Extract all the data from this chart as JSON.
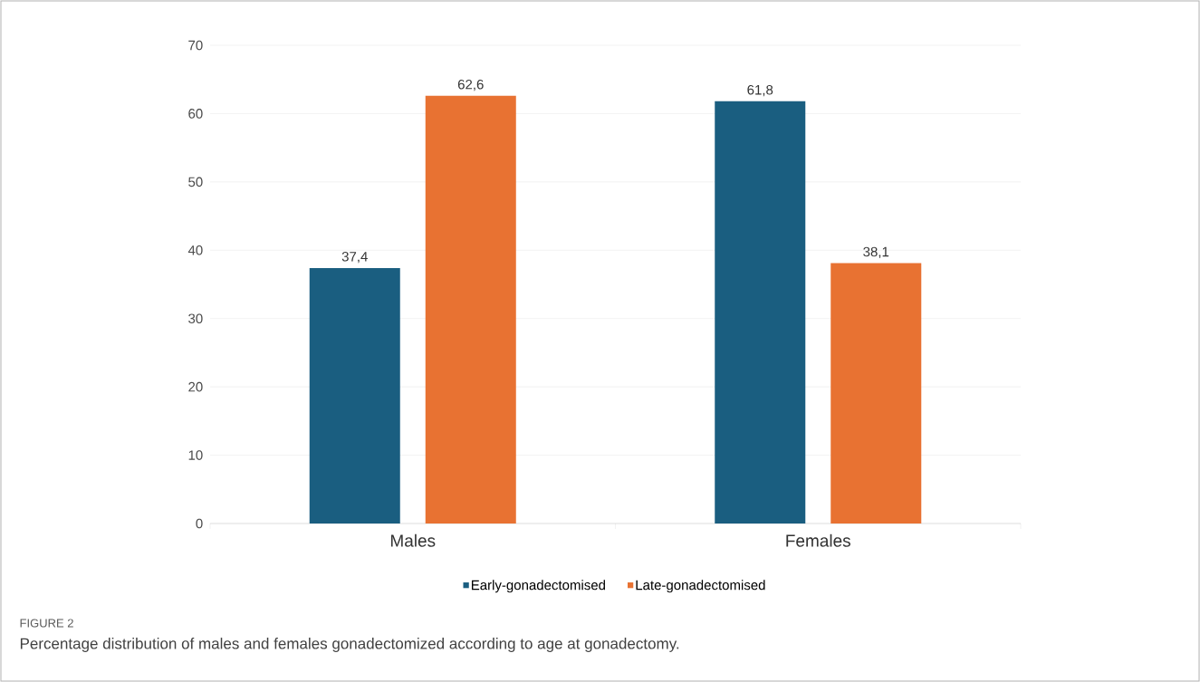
{
  "chart_data": {
    "type": "bar",
    "categories": [
      "Males",
      "Females"
    ],
    "series": [
      {
        "name": "Early-gonadectomised",
        "color": "#1a5e80",
        "values": [
          37.4,
          61.8
        ],
        "value_labels": [
          "37,4",
          "61,8"
        ]
      },
      {
        "name": "Late-gonadectomised",
        "color": "#e87232",
        "values": [
          62.6,
          38.1
        ],
        "value_labels": [
          "62,6",
          "38,1"
        ]
      }
    ],
    "ylim": [
      0,
      70
    ],
    "yticks": [
      0,
      10,
      20,
      30,
      40,
      50,
      60,
      70
    ],
    "grid": "y",
    "legend": "bottom",
    "annotations": [
      "FIGURE 2",
      "Percentage distribution of males and females gonadectomized according to age at gonadectomy."
    ]
  }
}
